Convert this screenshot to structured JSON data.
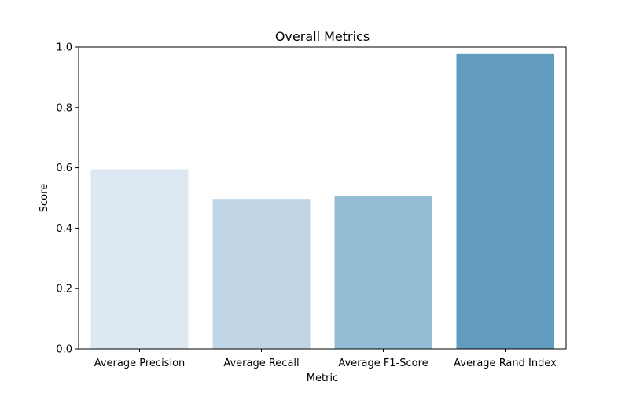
{
  "chart_data": {
    "type": "bar",
    "title": "Overall Metrics",
    "xlabel": "Metric",
    "ylabel": "Score",
    "categories": [
      "Average Precision",
      "Average Recall",
      "Average F1-Score",
      "Average Rand Index"
    ],
    "values": [
      0.595,
      0.497,
      0.507,
      0.977
    ],
    "colors": [
      "#dde8f3",
      "#c0d6e6",
      "#95bcd5",
      "#629cc0"
    ],
    "ylim": [
      0,
      1.0
    ],
    "yticks": [
      "0.0",
      "0.2",
      "0.4",
      "0.6",
      "0.8",
      "1.0"
    ],
    "grid": false,
    "legend": "none"
  }
}
